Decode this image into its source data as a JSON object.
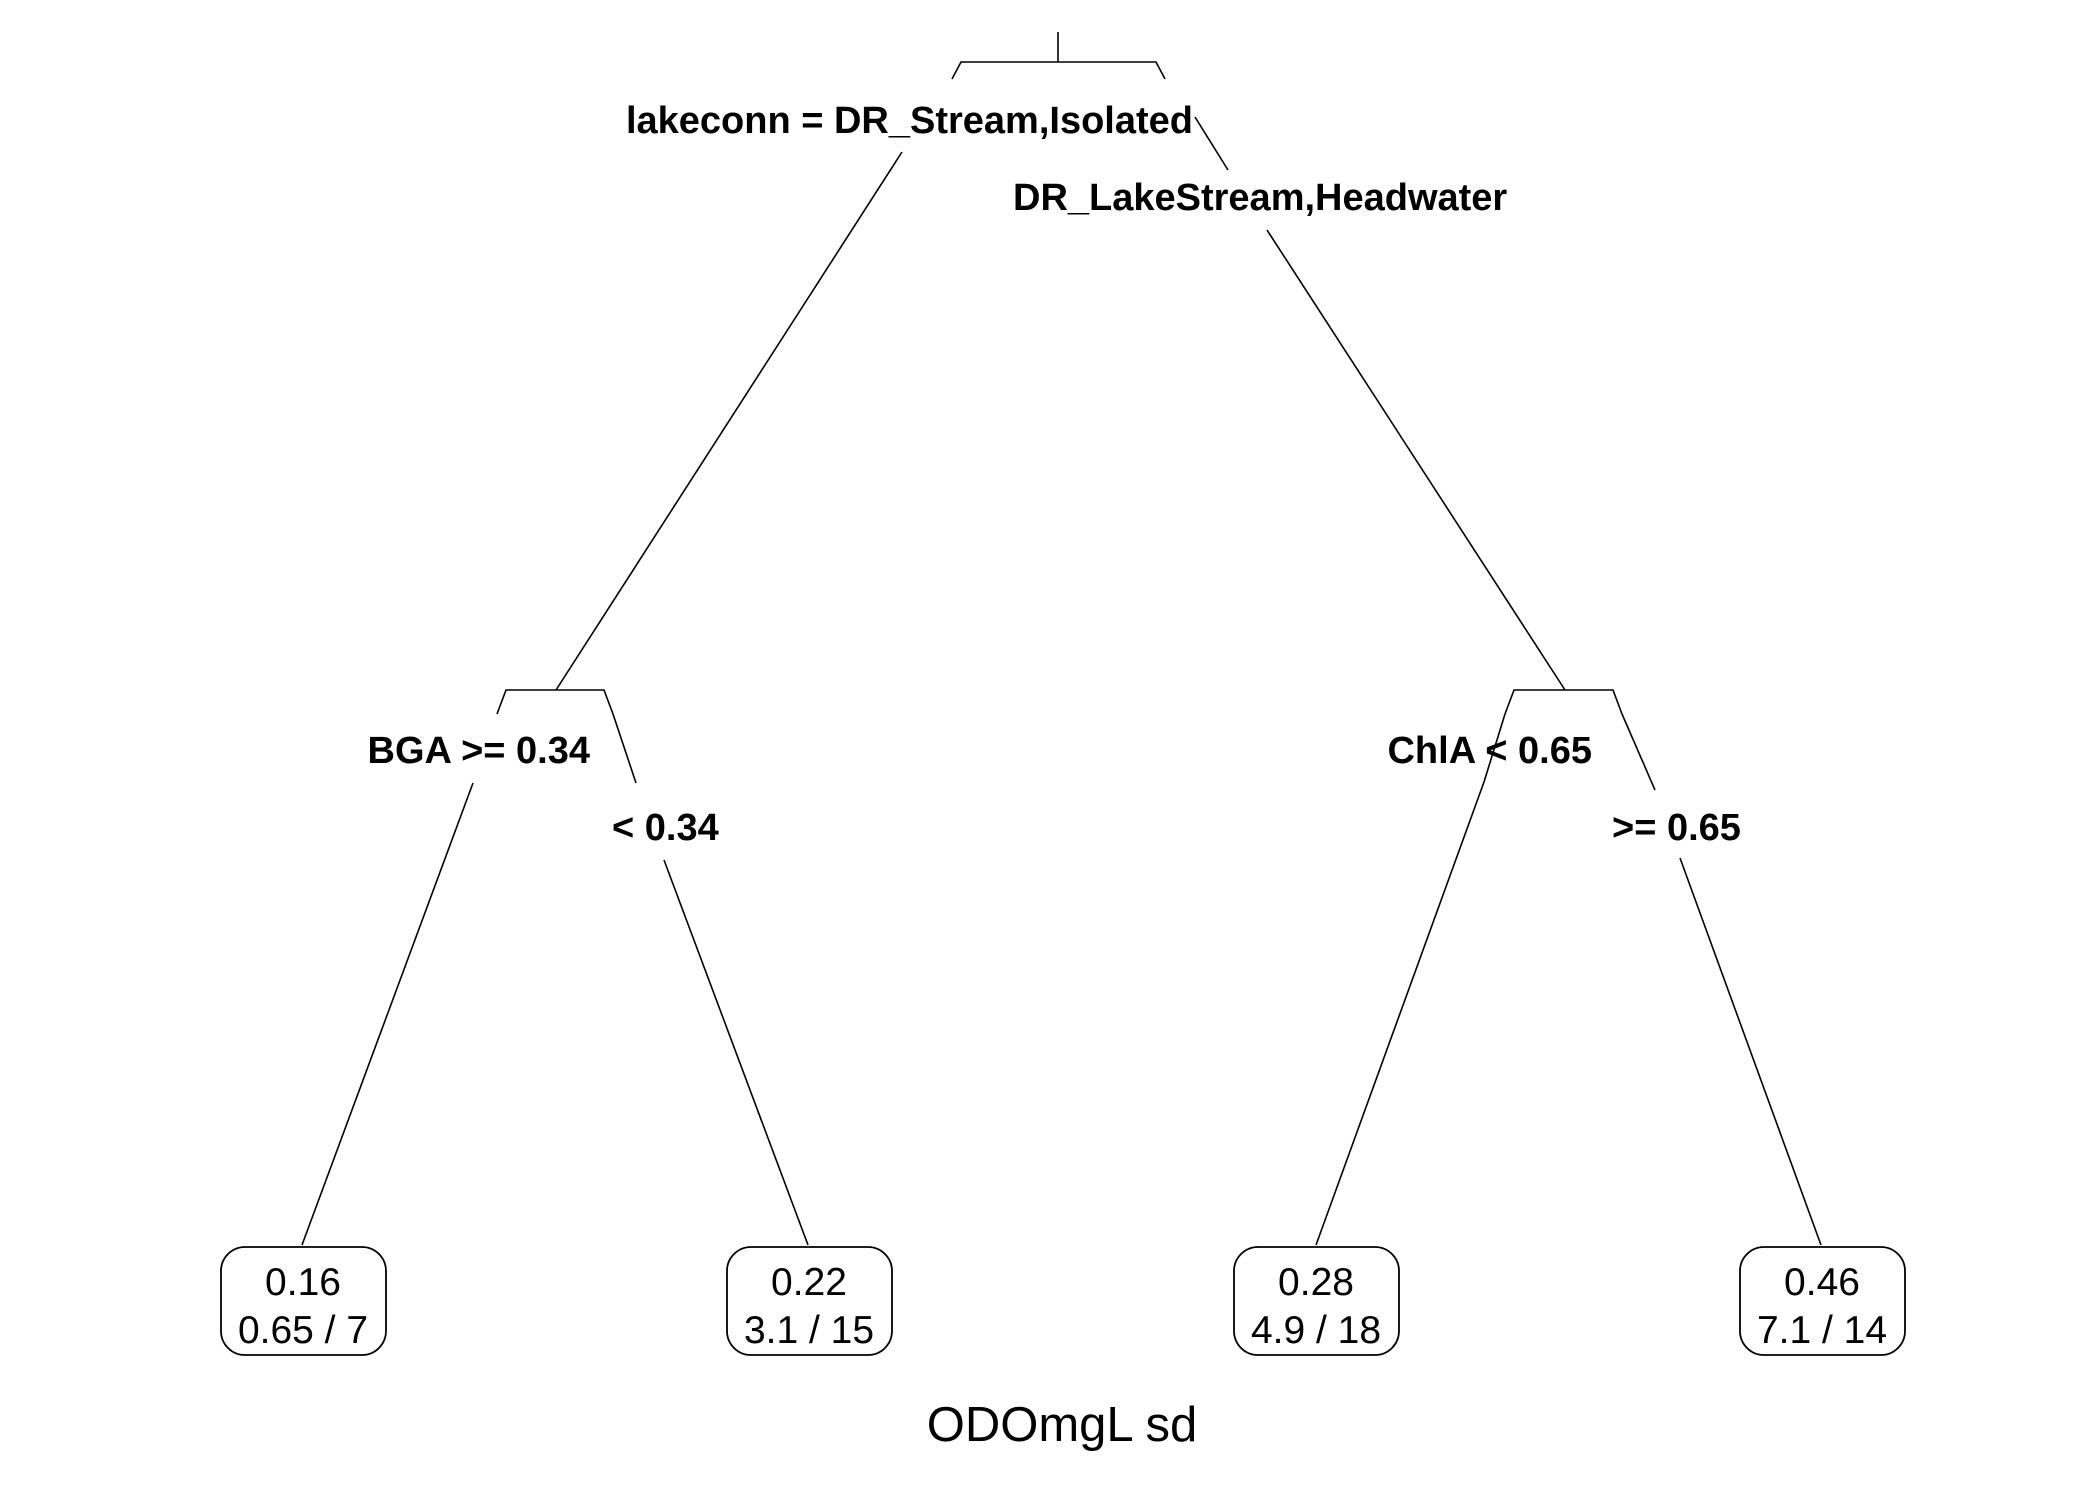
{
  "tree": {
    "root": {
      "left_label": "lakeconn = DR_Stream,Isolated",
      "right_label": "DR_LakeStream,Headwater"
    },
    "left_split": {
      "left_label": "BGA >= 0.34",
      "right_label": "< 0.34"
    },
    "right_split": {
      "left_label": "ChlA < 0.65",
      "right_label": ">= 0.65"
    },
    "leaves": [
      {
        "value": "0.16",
        "detail": "0.65 / 7"
      },
      {
        "value": "0.22",
        "detail": "3.1 / 15"
      },
      {
        "value": "0.28",
        "detail": "4.9 / 18"
      },
      {
        "value": "0.46",
        "detail": "7.1 / 14"
      }
    ]
  },
  "caption": "ODOmgL sd"
}
